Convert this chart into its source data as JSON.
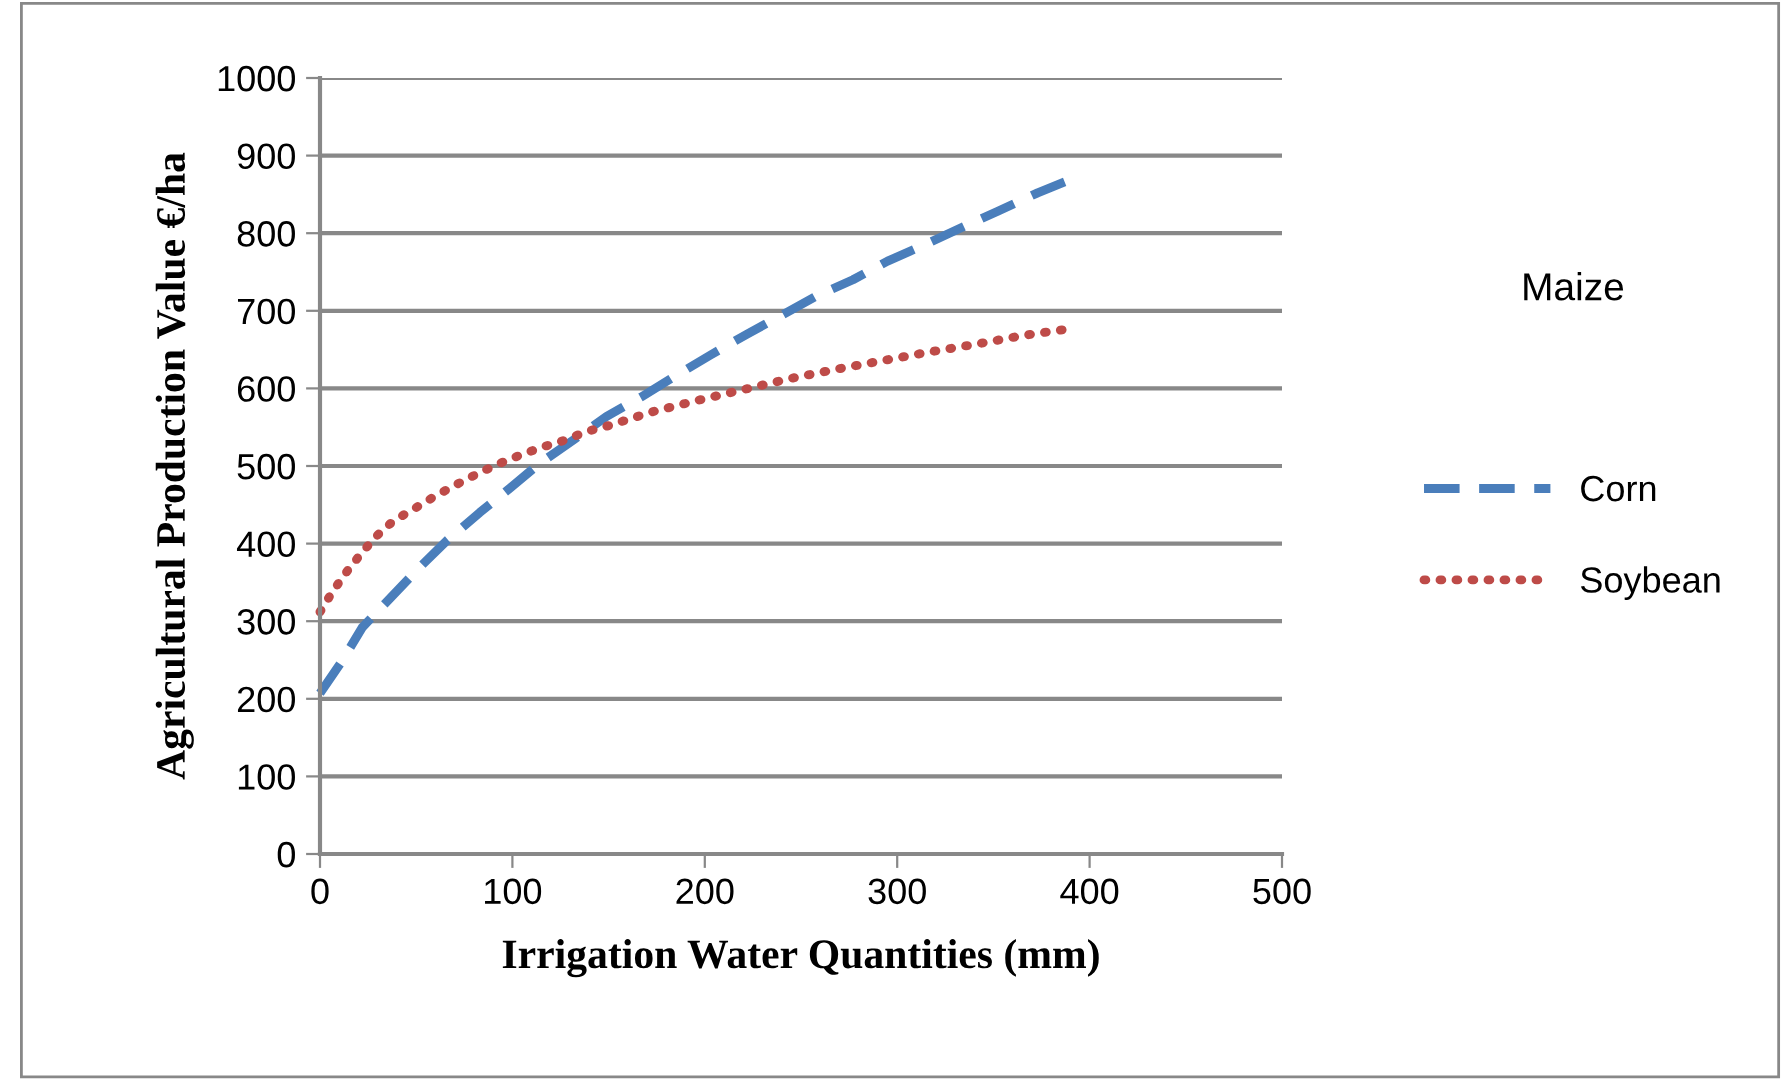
{
  "chart_data": {
    "type": "line",
    "xlabel": "Irrigation Water Quantities (mm)",
    "ylabel": "Agricultural Production Value €/ha",
    "legend_title": "Maize",
    "xlim": [
      0,
      500
    ],
    "xticks": [
      0,
      100,
      200,
      300,
      400,
      500
    ],
    "ylim": [
      0,
      1000
    ],
    "yticks": [
      0,
      100,
      200,
      300,
      400,
      500,
      600,
      700,
      800,
      900,
      1000
    ],
    "grid": "y",
    "legend": "right",
    "series": [
      {
        "name": "Corn",
        "color": "#4a7ebb",
        "line_style": "dashed",
        "x": [
          0,
          11,
          22,
          37,
          52,
          66,
          83,
          99,
          114,
          132,
          149,
          167,
          186,
          203,
          222,
          239,
          258,
          277,
          295,
          316,
          335,
          352,
          373,
          392
        ],
        "values": [
          207,
          247,
          292,
          331,
          370,
          404,
          440,
          472,
          503,
          534,
          564,
          589,
          618,
          643,
          670,
          693,
          719,
          740,
          764,
          787,
          809,
          828,
          852,
          871
        ]
      },
      {
        "name": "Soybean",
        "color": "#be4b48",
        "line_style": "dotted",
        "x": [
          0,
          6,
          13,
          21,
          29,
          38,
          49,
          59,
          70,
          81,
          92,
          103,
          115,
          127,
          138,
          150,
          173,
          197,
          221,
          245,
          269,
          293,
          317,
          341,
          365,
          390
        ],
        "values": [
          312,
          336,
          361,
          386,
          409,
          429,
          445,
          460,
          475,
          489,
          502,
          513,
          524,
          533,
          544,
          552,
          570,
          585,
          599,
          613,
          625,
          636,
          647,
          657,
          668,
          677
        ]
      }
    ]
  }
}
